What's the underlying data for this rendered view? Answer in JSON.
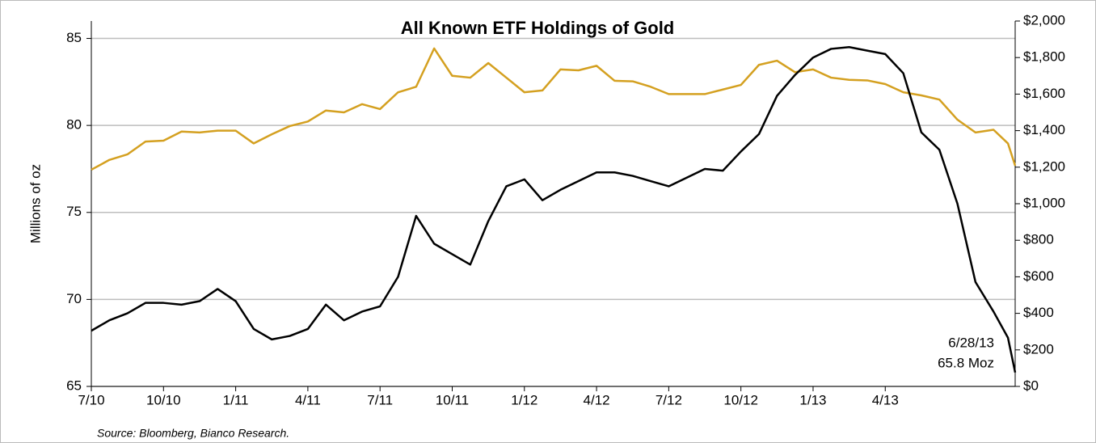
{
  "chart_data": {
    "type": "line",
    "title": "All Known ETF Holdings of Gold",
    "y_label": "Millions of oz",
    "source": "Source: Bloomberg, Bianco Research.",
    "annotations": [
      "6/28/13",
      "65.8 Moz"
    ],
    "x": [
      0,
      0.75,
      1.5,
      2.25,
      3,
      3.75,
      4.5,
      5.25,
      6,
      6.75,
      7.5,
      8.25,
      9,
      9.75,
      10.5,
      11.25,
      12,
      12.75,
      13.5,
      14.25,
      15,
      15.75,
      16.5,
      17.25,
      18,
      18.75,
      19.5,
      20.25,
      21,
      21.75,
      22.5,
      23.25,
      24,
      24.75,
      25.5,
      26.25,
      27,
      27.75,
      28.5,
      29.25,
      30,
      30.75,
      31.5,
      32.25,
      33,
      33.75,
      34.5,
      35.25,
      36,
      36.75,
      37.5,
      38.1,
      38.4
    ],
    "xlim": [
      0,
      38.4
    ],
    "xticks": [
      {
        "value": 0,
        "label": "7/10"
      },
      {
        "value": 3,
        "label": "10/10"
      },
      {
        "value": 6,
        "label": "1/11"
      },
      {
        "value": 9,
        "label": "4/11"
      },
      {
        "value": 12,
        "label": "7/11"
      },
      {
        "value": 15,
        "label": "10/11"
      },
      {
        "value": 18,
        "label": "1/12"
      },
      {
        "value": 21,
        "label": "4/12"
      },
      {
        "value": 24,
        "label": "7/12"
      },
      {
        "value": 27,
        "label": "10/12"
      },
      {
        "value": 30,
        "label": "1/13"
      },
      {
        "value": 33,
        "label": "4/13"
      }
    ],
    "ylim": [
      65,
      86
    ],
    "yticks": [
      65,
      70,
      75,
      80,
      85
    ],
    "y2lim": [
      0,
      2000
    ],
    "y2ticks": [
      {
        "value": 0,
        "label": "$0"
      },
      {
        "value": 200,
        "label": "$200"
      },
      {
        "value": 400,
        "label": "$400"
      },
      {
        "value": 600,
        "label": "$600"
      },
      {
        "value": 800,
        "label": "$800"
      },
      {
        "value": 1000,
        "label": "$1,000"
      },
      {
        "value": 1200,
        "label": "$1,200"
      },
      {
        "value": 1400,
        "label": "$1,400"
      },
      {
        "value": 1600,
        "label": "$1,600"
      },
      {
        "value": 1800,
        "label": "$1,800"
      },
      {
        "value": 2000,
        "label": "$2,000"
      }
    ],
    "grid": true,
    "series": [
      {
        "color": "#d4a020",
        "axis": "y2",
        "values": [
          1186,
          1240,
          1270,
          1340,
          1345,
          1395,
          1390,
          1400,
          1400,
          1330,
          1380,
          1425,
          1450,
          1510,
          1500,
          1545,
          1518,
          1610,
          1640,
          1850,
          1700,
          1690,
          1770,
          1690,
          1610,
          1620,
          1735,
          1730,
          1755,
          1673,
          1670,
          1640,
          1600,
          1600,
          1600,
          1625,
          1650,
          1760,
          1783,
          1720,
          1735,
          1690,
          1678,
          1675,
          1655,
          1610,
          1593,
          1570,
          1460,
          1390,
          1405,
          1330,
          1208
        ]
      },
      {
        "color": "#000000",
        "axis": "y",
        "values": [
          68.2,
          68.8,
          69.2,
          69.8,
          69.8,
          69.7,
          69.9,
          70.6,
          69.9,
          68.3,
          67.7,
          67.9,
          68.3,
          69.7,
          68.8,
          69.3,
          69.6,
          71.3,
          74.8,
          73.2,
          72.6,
          72.0,
          74.5,
          76.5,
          76.9,
          75.7,
          76.3,
          76.8,
          77.3,
          77.3,
          77.1,
          76.8,
          76.5,
          77.0,
          77.5,
          77.4,
          78.5,
          79.5,
          81.7,
          82.9,
          83.9,
          84.4,
          84.5,
          84.3,
          84.1,
          83.0,
          79.6,
          78.6,
          75.5,
          71.0,
          69.3,
          67.8,
          65.8
        ]
      }
    ]
  }
}
